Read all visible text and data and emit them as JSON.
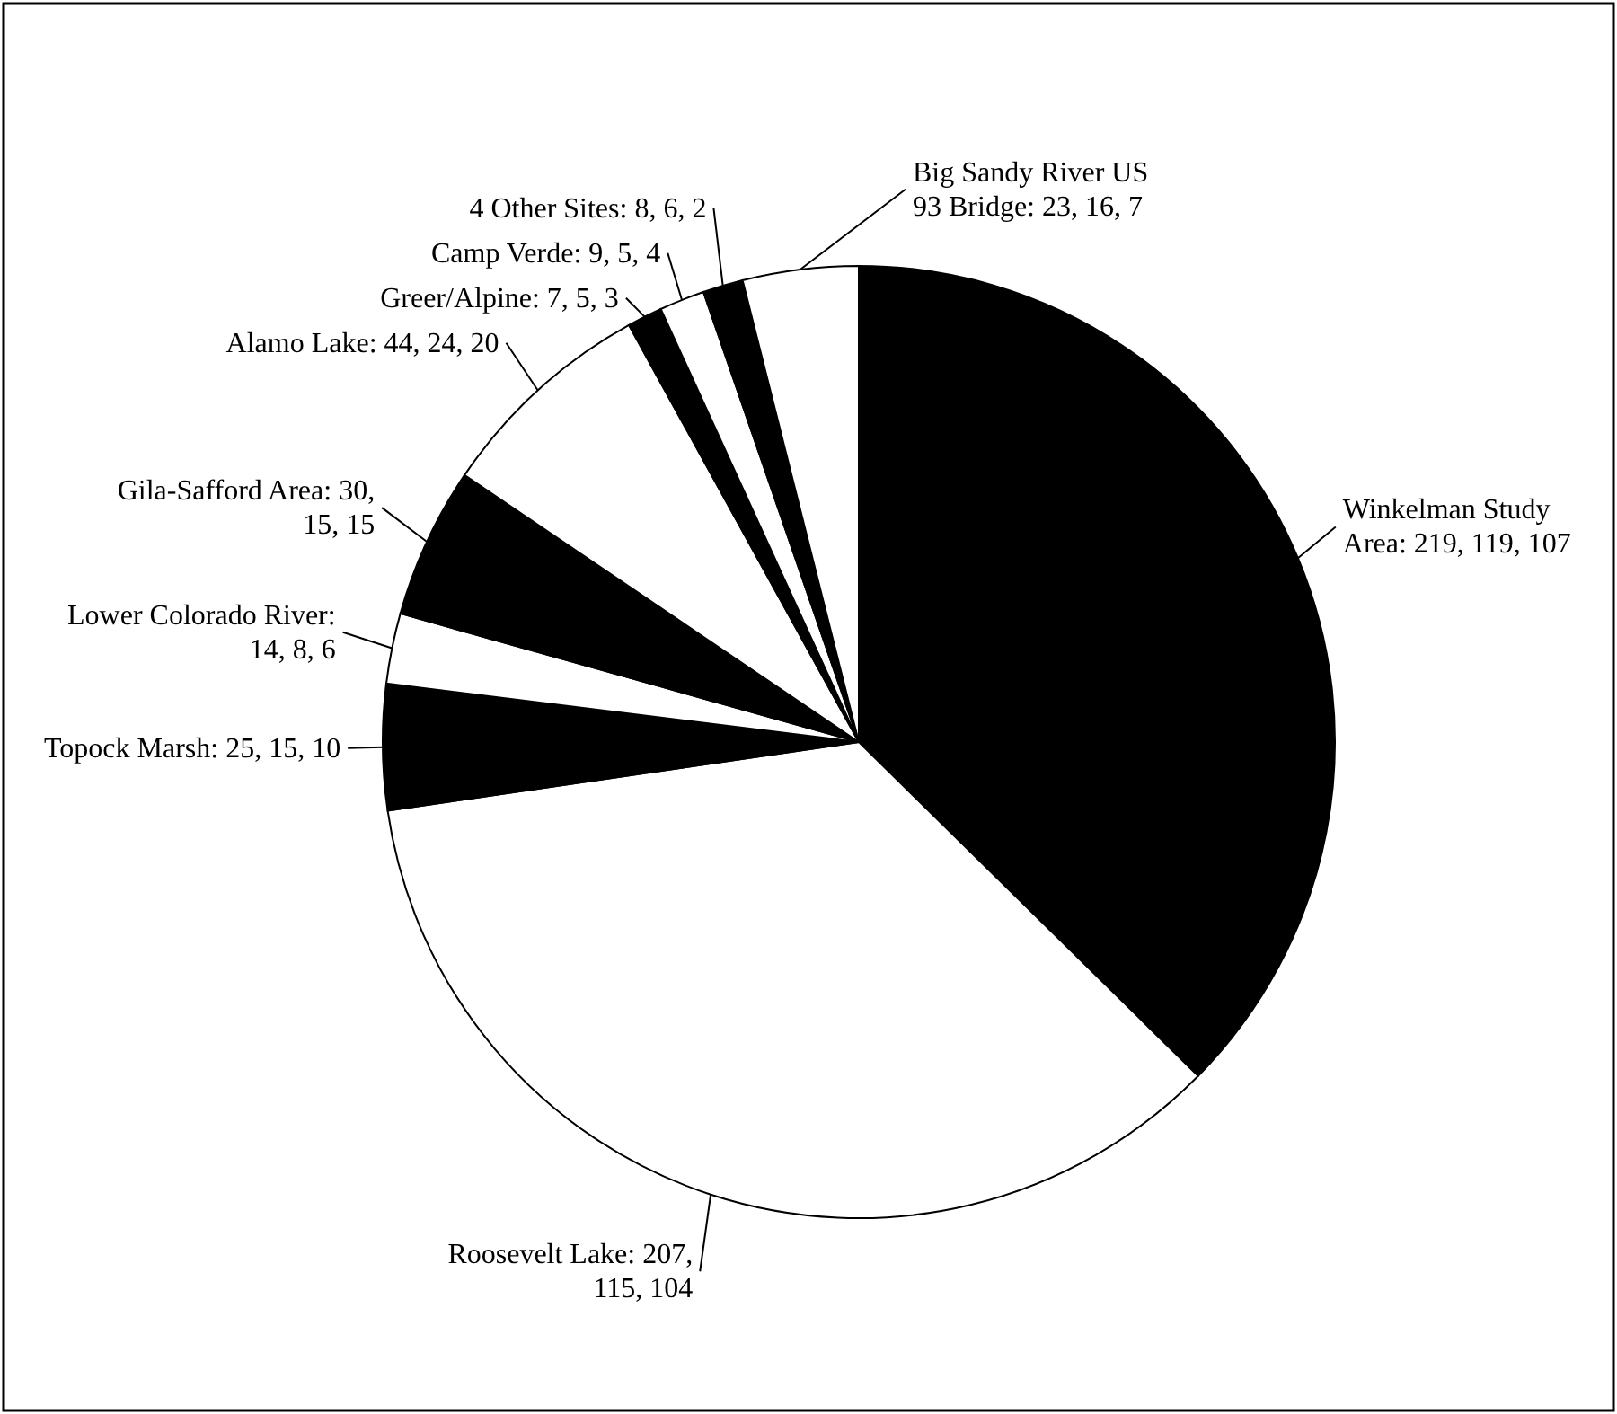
{
  "chart_data": {
    "type": "pie",
    "categories": [
      "Winkelman Study Area: 219, 119, 107",
      "Roosevelt Lake: 207, 115, 104",
      "Topock Marsh: 25, 15, 10",
      "Lower Colorado River: 14, 8, 6",
      "Gila-Safford Area: 30, 15, 15",
      "Alamo Lake: 44, 24, 20",
      "Greer/Alpine: 7, 5, 3",
      "Camp Verde: 9, 5, 4",
      "4 Other Sites: 8, 6, 2",
      "Big Sandy River US 93 Bridge: 23, 16, 7"
    ],
    "values": [
      219,
      207,
      25,
      14,
      30,
      44,
      7,
      9,
      8,
      23
    ],
    "colors": [
      "#000000",
      "#ffffff",
      "#000000",
      "#ffffff",
      "#000000",
      "#ffffff",
      "#000000",
      "#ffffff",
      "#000000",
      "#ffffff"
    ]
  }
}
